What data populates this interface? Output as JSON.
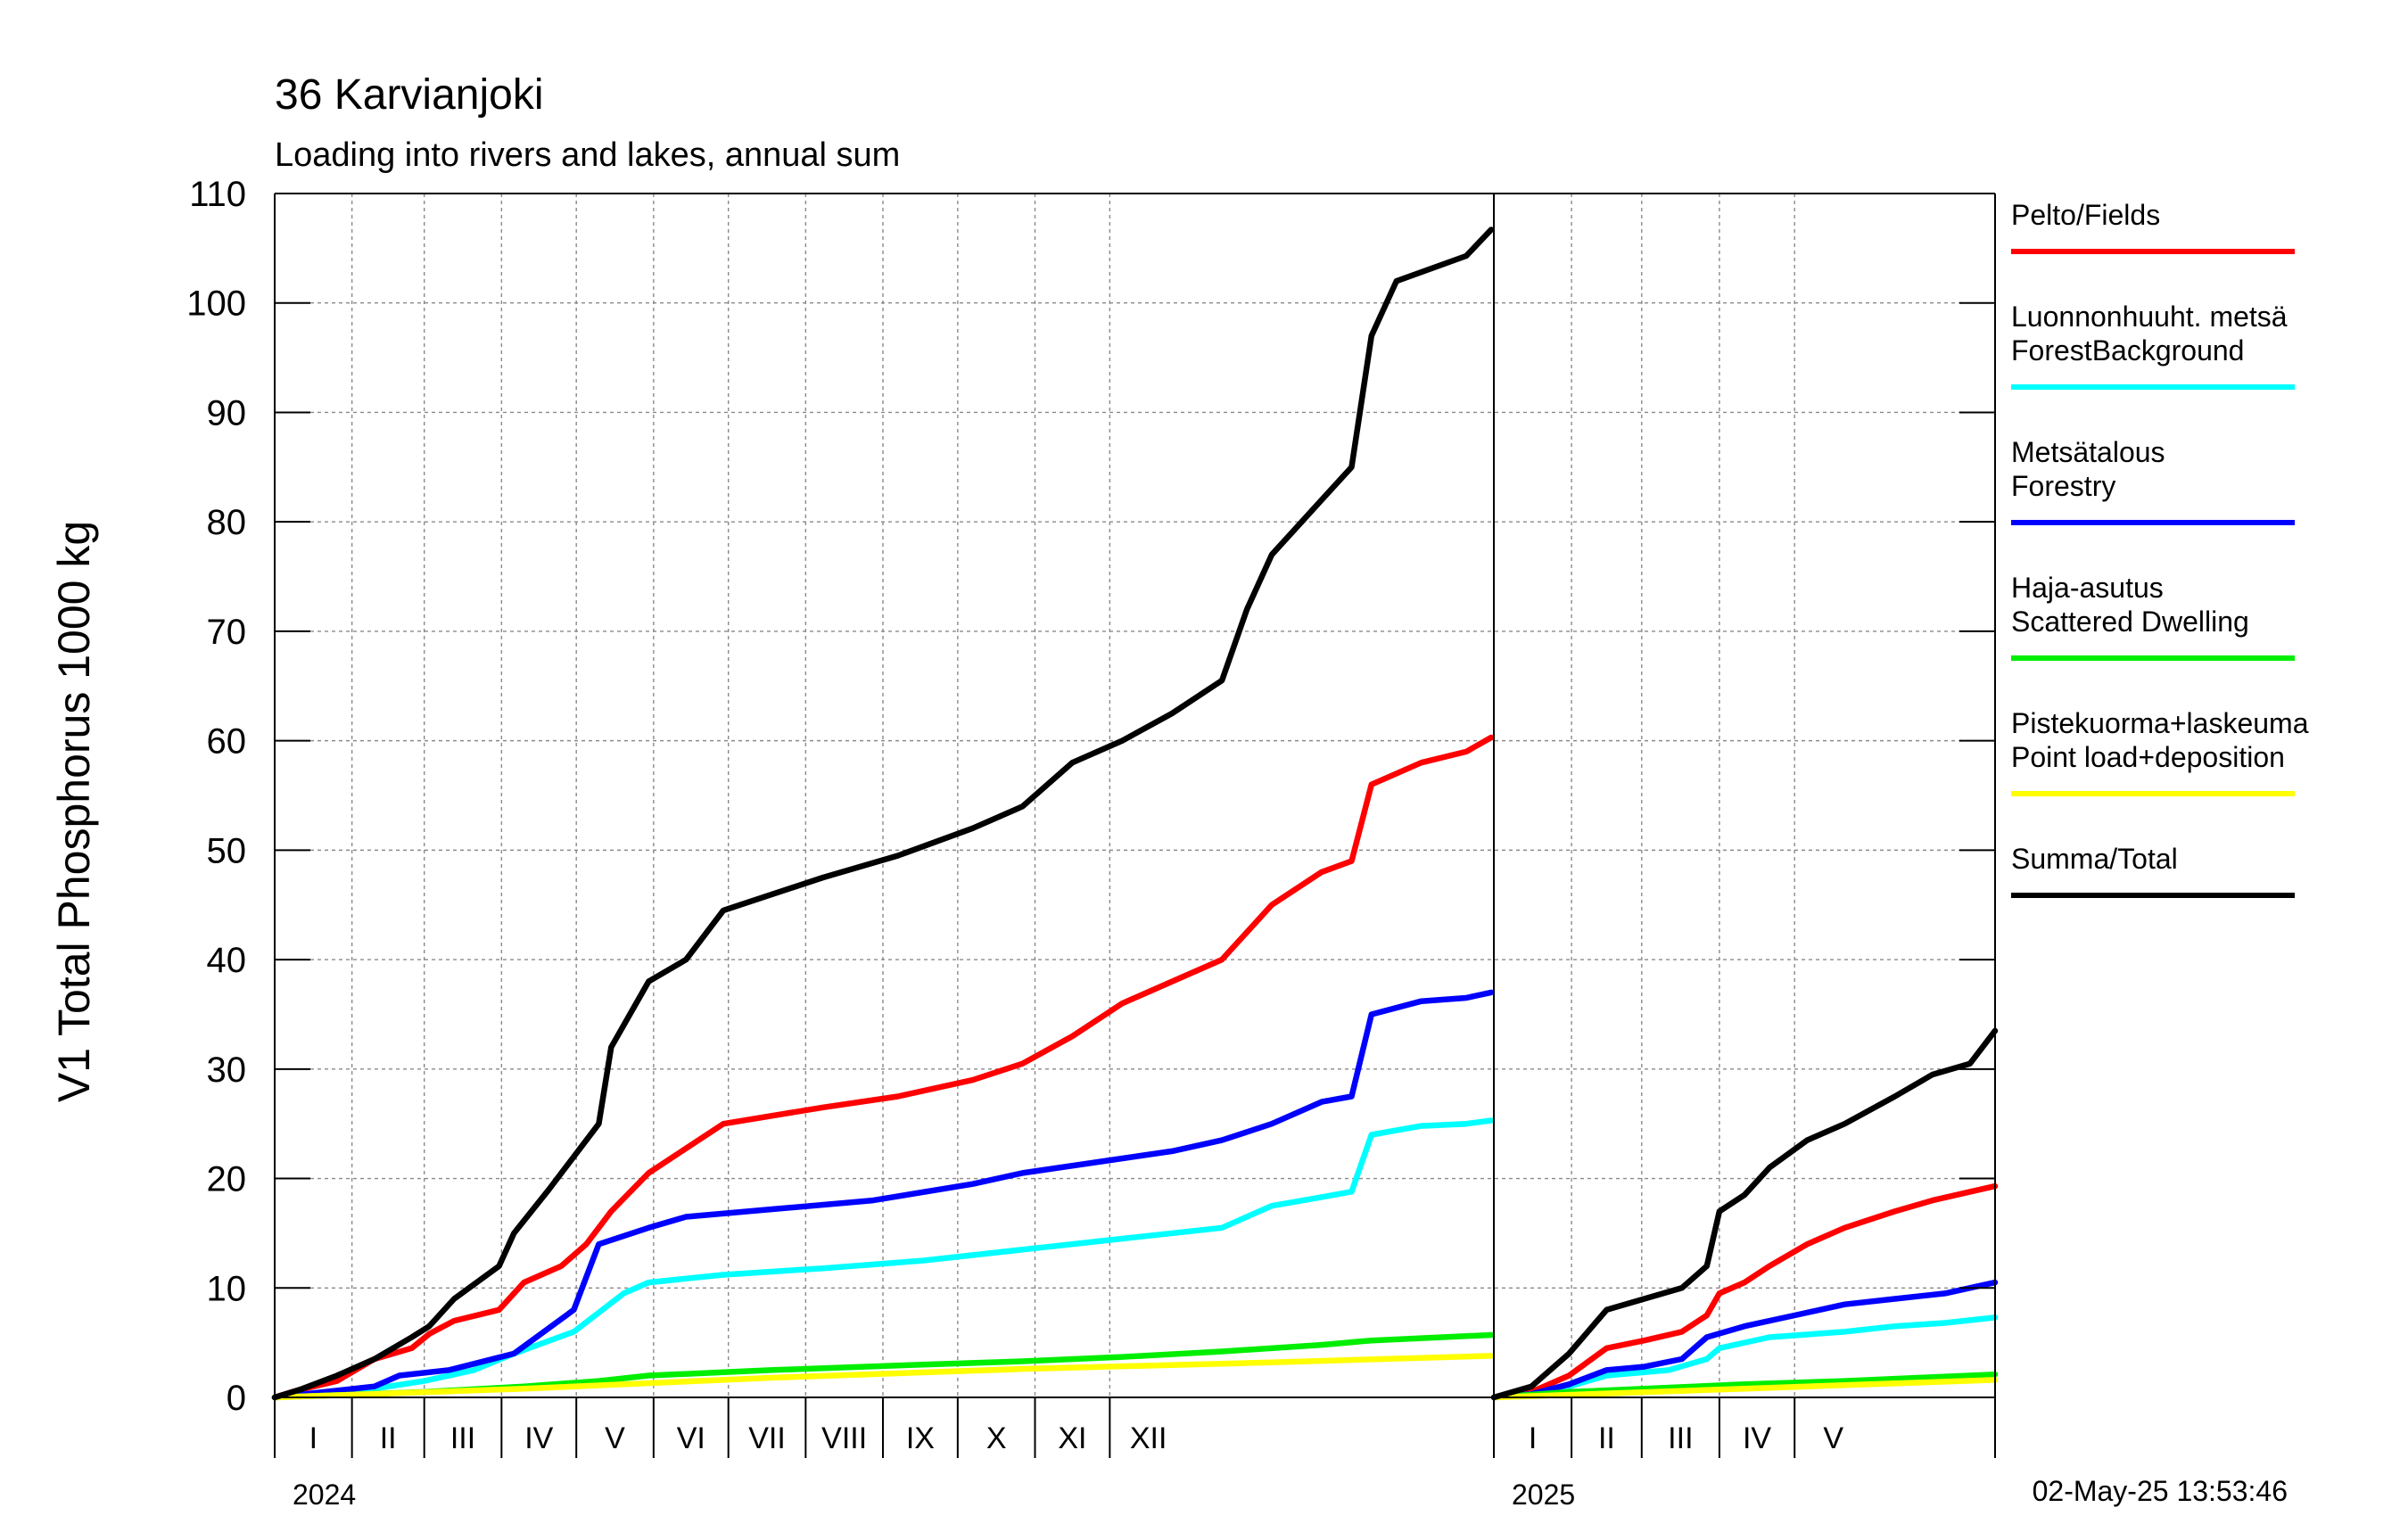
{
  "chart_data": {
    "type": "line",
    "title": "36 Karvianjoki",
    "subtitle": "Loading into rivers and lakes, annual sum",
    "ylabel": "V1 Total Phosphorus 1000 kg",
    "ylim": [
      0,
      110
    ],
    "yticks": [
      0,
      10,
      20,
      30,
      40,
      50,
      60,
      70,
      80,
      90,
      100,
      110
    ],
    "grid": true,
    "legend_position": "right",
    "timestamp": "02-May-25 13:53:46",
    "periods": [
      {
        "year": "2024",
        "months": [
          "I",
          "II",
          "III",
          "IV",
          "V",
          "VI",
          "VII",
          "VIII",
          "IX",
          "X",
          "XI",
          "XII"
        ],
        "series": [
          {
            "name": "Pelto/Fields",
            "color": "#ff0000",
            "points": [
              [
                0,
                0
              ],
              [
                10,
                0.7
              ],
              [
                25,
                1.5
              ],
              [
                40,
                3.5
              ],
              [
                55,
                4.5
              ],
              [
                62,
                5.8
              ],
              [
                72,
                7
              ],
              [
                90,
                8
              ],
              [
                100,
                10.5
              ],
              [
                115,
                12
              ],
              [
                125,
                14
              ],
              [
                135,
                17
              ],
              [
                150,
                20.5
              ],
              [
                180,
                25
              ],
              [
                220,
                26.5
              ],
              [
                250,
                27.5
              ],
              [
                280,
                29
              ],
              [
                300,
                30.5
              ],
              [
                320,
                33
              ],
              [
                340,
                36
              ],
              [
                360,
                38
              ],
              [
                380,
                40
              ],
              [
                400,
                45
              ],
              [
                420,
                48
              ],
              [
                432,
                49
              ],
              [
                440,
                56
              ],
              [
                460,
                58
              ],
              [
                478,
                59
              ],
              [
                488,
                60.3
              ]
            ]
          },
          {
            "name": "Luonnonhuuht. metsä\nForestBackground",
            "color": "#00ffff",
            "points": [
              [
                0,
                0
              ],
              [
                20,
                0.3
              ],
              [
                40,
                0.8
              ],
              [
                60,
                1.5
              ],
              [
                80,
                2.5
              ],
              [
                96,
                4
              ],
              [
                120,
                6
              ],
              [
                140,
                9.5
              ],
              [
                150,
                10.5
              ],
              [
                180,
                11.2
              ],
              [
                220,
                11.8
              ],
              [
                260,
                12.5
              ],
              [
                300,
                13.5
              ],
              [
                340,
                14.5
              ],
              [
                380,
                15.5
              ],
              [
                400,
                17.5
              ],
              [
                420,
                18.3
              ],
              [
                432,
                18.8
              ],
              [
                440,
                24
              ],
              [
                460,
                24.8
              ],
              [
                478,
                25
              ],
              [
                488,
                25.3
              ]
            ]
          },
          {
            "name": "Metsätalous\nForestry",
            "color": "#0000ff",
            "points": [
              [
                0,
                0
              ],
              [
                20,
                0.5
              ],
              [
                40,
                1
              ],
              [
                50,
                2
              ],
              [
                70,
                2.5
              ],
              [
                96,
                4
              ],
              [
                120,
                8
              ],
              [
                130,
                14
              ],
              [
                150,
                15.5
              ],
              [
                165,
                16.5
              ],
              [
                200,
                17.2
              ],
              [
                240,
                18
              ],
              [
                280,
                19.5
              ],
              [
                300,
                20.5
              ],
              [
                330,
                21.5
              ],
              [
                360,
                22.5
              ],
              [
                380,
                23.5
              ],
              [
                400,
                25
              ],
              [
                420,
                27
              ],
              [
                432,
                27.5
              ],
              [
                440,
                35
              ],
              [
                460,
                36.2
              ],
              [
                478,
                36.5
              ],
              [
                488,
                37
              ]
            ]
          },
          {
            "name": "Haja-asutus\nScattered Dwelling",
            "color": "#00ee00",
            "points": [
              [
                0,
                0
              ],
              [
                60,
                0.5
              ],
              [
                100,
                1
              ],
              [
                130,
                1.5
              ],
              [
                150,
                2
              ],
              [
                200,
                2.5
              ],
              [
                260,
                3
              ],
              [
                300,
                3.3
              ],
              [
                340,
                3.7
              ],
              [
                380,
                4.2
              ],
              [
                420,
                4.8
              ],
              [
                440,
                5.2
              ],
              [
                488,
                5.7
              ]
            ]
          },
          {
            "name": "Pistekuorma+laskeuma\nPoint load+deposition",
            "color": "#ffff00",
            "points": [
              [
                0,
                0
              ],
              [
                100,
                0.8
              ],
              [
                200,
                1.8
              ],
              [
                300,
                2.6
              ],
              [
                400,
                3.2
              ],
              [
                488,
                3.8
              ]
            ]
          },
          {
            "name": "Summa/Total",
            "color": "#000000",
            "points": [
              [
                0,
                0
              ],
              [
                10,
                0.7
              ],
              [
                25,
                2
              ],
              [
                40,
                3.5
              ],
              [
                55,
                5.5
              ],
              [
                62,
                6.5
              ],
              [
                72,
                9
              ],
              [
                90,
                12
              ],
              [
                96,
                15
              ],
              [
                110,
                19
              ],
              [
                130,
                25
              ],
              [
                135,
                32
              ],
              [
                150,
                38
              ],
              [
                165,
                40
              ],
              [
                180,
                44.5
              ],
              [
                220,
                47.5
              ],
              [
                250,
                49.5
              ],
              [
                280,
                52
              ],
              [
                300,
                54
              ],
              [
                320,
                58
              ],
              [
                340,
                60
              ],
              [
                360,
                62.5
              ],
              [
                380,
                65.5
              ],
              [
                390,
                72
              ],
              [
                400,
                77
              ],
              [
                420,
                82
              ],
              [
                432,
                85
              ],
              [
                440,
                97
              ],
              [
                450,
                102
              ],
              [
                478,
                104.3
              ],
              [
                488,
                106.7
              ]
            ]
          }
        ]
      },
      {
        "year": "2025",
        "months": [
          "I",
          "II",
          "III",
          "IV",
          "V"
        ],
        "series": [
          {
            "name": "Pelto/Fields",
            "color": "#ff0000",
            "points": [
              [
                0,
                0
              ],
              [
                15,
                0.5
              ],
              [
                30,
                2
              ],
              [
                45,
                4.5
              ],
              [
                60,
                5.2
              ],
              [
                75,
                6
              ],
              [
                85,
                7.5
              ],
              [
                90,
                9.5
              ],
              [
                100,
                10.5
              ],
              [
                110,
                12
              ],
              [
                125,
                14
              ],
              [
                140,
                15.5
              ],
              [
                160,
                17
              ],
              [
                175,
                18
              ],
              [
                200,
                19.3
              ]
            ]
          },
          {
            "name": "Luonnonhuuht. metsä\nForestBackground",
            "color": "#00ffff",
            "points": [
              [
                0,
                0
              ],
              [
                15,
                0.3
              ],
              [
                30,
                1
              ],
              [
                45,
                2
              ],
              [
                70,
                2.5
              ],
              [
                85,
                3.5
              ],
              [
                90,
                4.5
              ],
              [
                110,
                5.5
              ],
              [
                140,
                6
              ],
              [
                160,
                6.5
              ],
              [
                180,
                6.8
              ],
              [
                200,
                7.3
              ]
            ]
          },
          {
            "name": "Metsätalous\nForestry",
            "color": "#0000ff",
            "points": [
              [
                0,
                0
              ],
              [
                15,
                0.3
              ],
              [
                30,
                1.2
              ],
              [
                45,
                2.5
              ],
              [
                60,
                2.8
              ],
              [
                75,
                3.5
              ],
              [
                85,
                5.5
              ],
              [
                100,
                6.5
              ],
              [
                120,
                7.5
              ],
              [
                140,
                8.5
              ],
              [
                160,
                9
              ],
              [
                180,
                9.5
              ],
              [
                200,
                10.5
              ]
            ]
          },
          {
            "name": "Haja-asutus\nScattered Dwelling",
            "color": "#00ee00",
            "points": [
              [
                0,
                0
              ],
              [
                30,
                0.5
              ],
              [
                60,
                0.8
              ],
              [
                100,
                1.2
              ],
              [
                140,
                1.5
              ],
              [
                170,
                1.8
              ],
              [
                200,
                2.1
              ]
            ]
          },
          {
            "name": "Pistekuorma+laskeuma\nPoint load+deposition",
            "color": "#ffff00",
            "points": [
              [
                0,
                0
              ],
              [
                50,
                0.4
              ],
              [
                100,
                0.8
              ],
              [
                150,
                1.2
              ],
              [
                200,
                1.6
              ]
            ]
          },
          {
            "name": "Summa/Total",
            "color": "#000000",
            "points": [
              [
                0,
                0
              ],
              [
                15,
                1
              ],
              [
                30,
                4
              ],
              [
                45,
                8
              ],
              [
                60,
                9
              ],
              [
                75,
                10
              ],
              [
                85,
                12
              ],
              [
                90,
                17
              ],
              [
                100,
                18.5
              ],
              [
                110,
                21
              ],
              [
                125,
                23.5
              ],
              [
                140,
                25
              ],
              [
                160,
                27.5
              ],
              [
                175,
                29.5
              ],
              [
                190,
                30.5
              ],
              [
                200,
                33.5
              ]
            ]
          }
        ]
      }
    ]
  }
}
